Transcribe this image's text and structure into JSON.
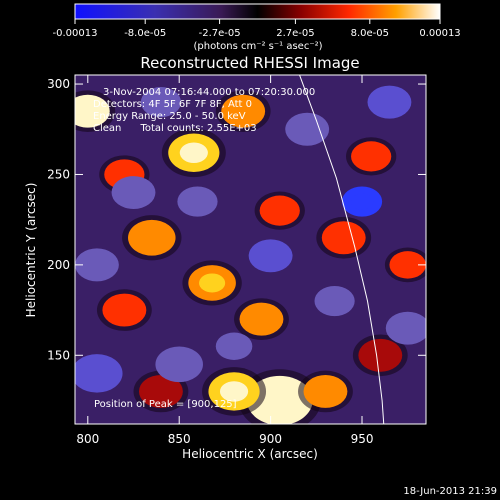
{
  "chart_data": {
    "type": "heatmap",
    "title": "Reconstructed RHESSI Image",
    "xlabel": "Heliocentric X (arcsec)",
    "ylabel": "Heliocentric Y (arcsec)",
    "xlim": [
      793,
      985
    ],
    "ylim": [
      112,
      305
    ],
    "x_ticks": [
      800,
      850,
      900,
      950
    ],
    "y_ticks": [
      150,
      200,
      250,
      300
    ],
    "colorbar": {
      "range": [
        -0.00013,
        0.00013
      ],
      "tick_labels": [
        "-0.00013",
        "-8.0e-05",
        "-2.7e-05",
        "2.7e-05",
        "8.0e-05",
        "0.00013"
      ],
      "tick_values": [
        -0.00013,
        -8e-05,
        -2.7e-05,
        2.7e-05,
        8e-05,
        0.00013
      ],
      "unit_label": "(photons cm⁻² s⁻¹ asec⁻²)"
    },
    "annotations": [
      "3-Nov-2004 07:16:44.000 to 07:20:30.000",
      "Detectors: 4F 5F 6F 7F 8F, Att 0",
      "Energy Range: 25.0 - 50.0 keV",
      "Clean      Total counts: 2.55E+03"
    ],
    "peak_label": "Position of Peak = [900,125]",
    "peak": [
      900,
      125
    ],
    "limb_points": [
      [
        914,
        310
      ],
      [
        925,
        280
      ],
      [
        936,
        248
      ],
      [
        946,
        210
      ],
      [
        953,
        180
      ],
      [
        958,
        150
      ],
      [
        961,
        125
      ],
      [
        962,
        110
      ]
    ],
    "blobs": [
      {
        "x": 905,
        "y": 125,
        "v": 1.0,
        "r": 18
      },
      {
        "x": 880,
        "y": 130,
        "v": 0.75,
        "r": 14
      },
      {
        "x": 800,
        "y": 285,
        "v": 0.9,
        "r": 12
      },
      {
        "x": 858,
        "y": 262,
        "v": 0.75,
        "r": 14
      },
      {
        "x": 885,
        "y": 285,
        "v": 0.55,
        "r": 12
      },
      {
        "x": 835,
        "y": 215,
        "v": 0.55,
        "r": 13
      },
      {
        "x": 868,
        "y": 190,
        "v": 0.7,
        "r": 13
      },
      {
        "x": 895,
        "y": 170,
        "v": 0.6,
        "r": 12
      },
      {
        "x": 820,
        "y": 175,
        "v": 0.45,
        "r": 12
      },
      {
        "x": 940,
        "y": 215,
        "v": 0.45,
        "r": 12
      },
      {
        "x": 975,
        "y": 200,
        "v": 0.4,
        "r": 10
      },
      {
        "x": 930,
        "y": 130,
        "v": 0.6,
        "r": 12
      },
      {
        "x": 905,
        "y": 230,
        "v": 0.35,
        "r": 11
      },
      {
        "x": 955,
        "y": 260,
        "v": 0.4,
        "r": 11
      },
      {
        "x": 960,
        "y": 150,
        "v": 0.3,
        "r": 12
      },
      {
        "x": 840,
        "y": 130,
        "v": 0.3,
        "r": 12
      },
      {
        "x": 820,
        "y": 250,
        "v": 0.35,
        "r": 11
      },
      {
        "x": 850,
        "y": 145,
        "v": -0.5,
        "r": 13
      },
      {
        "x": 805,
        "y": 140,
        "v": -0.6,
        "r": 14
      },
      {
        "x": 950,
        "y": 235,
        "v": -0.85,
        "r": 11
      },
      {
        "x": 965,
        "y": 290,
        "v": -0.55,
        "r": 12
      },
      {
        "x": 825,
        "y": 240,
        "v": -0.5,
        "r": 12
      },
      {
        "x": 900,
        "y": 205,
        "v": -0.55,
        "r": 12
      },
      {
        "x": 860,
        "y": 235,
        "v": -0.45,
        "r": 11
      },
      {
        "x": 920,
        "y": 275,
        "v": -0.45,
        "r": 12
      },
      {
        "x": 975,
        "y": 165,
        "v": -0.5,
        "r": 12
      },
      {
        "x": 935,
        "y": 180,
        "v": -0.4,
        "r": 11
      },
      {
        "x": 805,
        "y": 200,
        "v": -0.45,
        "r": 12
      },
      {
        "x": 880,
        "y": 155,
        "v": -0.35,
        "r": 10
      },
      {
        "x": 840,
        "y": 290,
        "v": -0.35,
        "r": 11
      }
    ]
  },
  "footer": {
    "timestamp": "18-Jun-2013 21:39"
  },
  "colors": {
    "background": "#000000",
    "axis": "#ffffff",
    "limb": "#ffffff"
  }
}
